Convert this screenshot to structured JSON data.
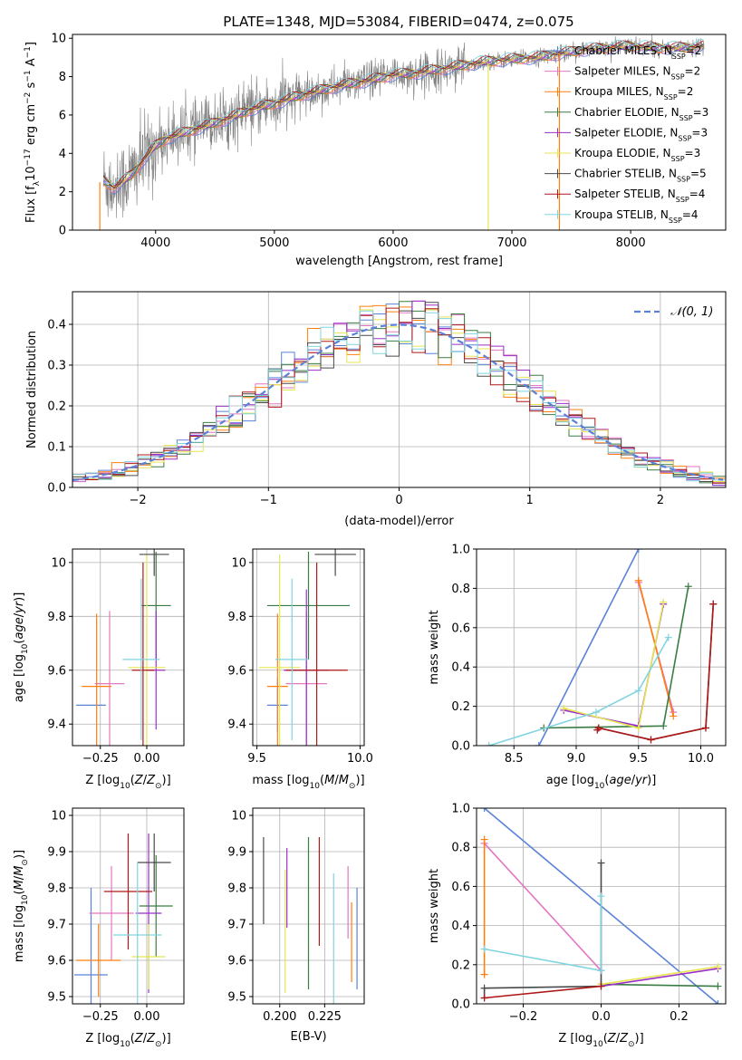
{
  "figure_title": "PLATE=1348, MJD=53084, FIBERID=0474, z=0.075",
  "colors": {
    "Chabrier MILES": "#5b82d9",
    "Salpeter MILES": "#e377c2",
    "Kroupa MILES": "#ff7f0e",
    "Chabrier ELODIE": "#3a7d44",
    "Salpeter ELODIE": "#9b30c8",
    "Kroupa ELODIE": "#e6e650",
    "Chabrier STELIB": "#4a4a4a",
    "Salpeter STELIB": "#b01818",
    "Kroupa STELIB": "#80d4e0",
    "gaussian": "#5b82d9",
    "data": "#808080",
    "grid": "#b0b0b0"
  },
  "chart_data": [
    {
      "id": "spectrum",
      "type": "line",
      "xlabel": "wavelength [Angstrom, rest frame]",
      "ylabel": "Flux [f_λ10^{-17} erg cm^{-2} s^{-1} A^{-1}]",
      "xlim": [
        3300,
        8800
      ],
      "ylim": [
        0,
        10.2
      ],
      "xticks": [
        4000,
        5000,
        6000,
        7000,
        8000
      ],
      "yticks": [
        0,
        2,
        4,
        6,
        8,
        10
      ],
      "grid": false,
      "legend_position": "right",
      "legend": [
        {
          "base": "Chabrier MILES, N",
          "sub": "SSP",
          "tail": "=2",
          "series": "Chabrier MILES"
        },
        {
          "base": "Salpeter MILES, N",
          "sub": "SSP",
          "tail": "=2",
          "series": "Salpeter MILES"
        },
        {
          "base": "Kroupa MILES, N",
          "sub": "SSP",
          "tail": "=2",
          "series": "Kroupa MILES"
        },
        {
          "base": "Chabrier ELODIE, N",
          "sub": "SSP",
          "tail": "=3",
          "series": "Chabrier ELODIE"
        },
        {
          "base": "Salpeter ELODIE, N",
          "sub": "SSP",
          "tail": "=3",
          "series": "Salpeter ELODIE"
        },
        {
          "base": "Kroupa ELODIE, N",
          "sub": "SSP",
          "tail": "=3",
          "series": "Kroupa ELODIE"
        },
        {
          "base": "Chabrier STELIB, N",
          "sub": "SSP",
          "tail": "=5",
          "series": "Chabrier STELIB"
        },
        {
          "base": "Salpeter STELIB, N",
          "sub": "SSP",
          "tail": "=4",
          "series": "Salpeter STELIB"
        },
        {
          "base": "Kroupa STELIB, N",
          "sub": "SSP",
          "tail": "=4",
          "series": "Kroupa STELIB"
        }
      ],
      "continuum": [
        [
          3560,
          2.6
        ],
        [
          3650,
          2.2
        ],
        [
          3800,
          2.9
        ],
        [
          3900,
          3.7
        ],
        [
          4000,
          4.4
        ],
        [
          4100,
          4.8
        ],
        [
          4200,
          5.0
        ],
        [
          4400,
          5.4
        ],
        [
          4600,
          5.8
        ],
        [
          4800,
          6.3
        ],
        [
          5000,
          6.6
        ],
        [
          5200,
          7.0
        ],
        [
          5400,
          7.3
        ],
        [
          5600,
          7.6
        ],
        [
          5800,
          7.8
        ],
        [
          6000,
          8.1
        ],
        [
          6200,
          8.2
        ],
        [
          6400,
          8.4
        ],
        [
          6600,
          8.6
        ],
        [
          6800,
          8.8
        ],
        [
          7000,
          8.9
        ],
        [
          7200,
          9.0
        ],
        [
          7400,
          9.2
        ],
        [
          7600,
          9.4
        ],
        [
          7800,
          9.5
        ],
        [
          8000,
          9.6
        ],
        [
          8200,
          9.5
        ],
        [
          8400,
          9.5
        ],
        [
          8620,
          9.6
        ]
      ]
    },
    {
      "id": "residuals",
      "type": "histogram",
      "xlabel": "(data-model)/error",
      "ylabel": "Normed distribution",
      "xlim": [
        -2.5,
        2.5
      ],
      "ylim": [
        0,
        0.48
      ],
      "xticks": [
        -2,
        -1,
        0,
        1,
        2
      ],
      "yticks": [
        0.0,
        0.1,
        0.2,
        0.3,
        0.4
      ],
      "grid": true,
      "legend": [
        "𝒩(0, 1)"
      ],
      "legend_position": "top-right",
      "gaussian": {
        "mu": 0,
        "sigma": 1
      }
    },
    {
      "id": "age_vs_Z",
      "type": "scatter",
      "xlabel": "Z [log10(Z/Z⊙)]",
      "ylabel": "age [log10(age/yr)]",
      "xlim": [
        -0.4,
        0.2
      ],
      "ylim": [
        9.32,
        10.05
      ],
      "xticks": [
        -0.25,
        0.0
      ],
      "yticks": [
        9.4,
        9.6,
        9.8,
        10.0
      ],
      "grid": true,
      "points": [
        {
          "series": "Chabrier MILES",
          "x": -0.3,
          "xerr": 0.08,
          "y": 9.47,
          "yerr": 0
        },
        {
          "series": "Salpeter MILES",
          "x": -0.2,
          "xerr": 0.08,
          "y": 9.55,
          "yerr": 0.27
        },
        {
          "series": "Kroupa MILES",
          "x": -0.27,
          "xerr": 0.08,
          "y": 9.54,
          "yerr": 0.27
        },
        {
          "series": "Chabrier ELODIE",
          "x": 0.05,
          "xerr": 0.08,
          "y": 9.84,
          "yerr": 0.2
        },
        {
          "series": "Salpeter ELODIE",
          "x": 0.05,
          "xerr": 0.05,
          "y": 9.6,
          "yerr": 0.22
        },
        {
          "series": "Kroupa ELODIE",
          "x": 0.0,
          "xerr": 0.1,
          "y": 9.61,
          "yerr": 0.42
        },
        {
          "series": "Chabrier STELIB",
          "x": 0.04,
          "xerr": 0.08,
          "y": 10.03,
          "yerr": 0.08
        },
        {
          "series": "Salpeter STELIB",
          "x": -0.02,
          "xerr": 0.06,
          "y": 9.6,
          "yerr": 0.4
        },
        {
          "series": "Kroupa STELIB",
          "x": -0.03,
          "xerr": 0.1,
          "y": 9.64,
          "yerr": 0.3
        }
      ]
    },
    {
      "id": "age_vs_mass",
      "type": "scatter",
      "xlabel": "mass [log10(M/M⊙)]",
      "ylabel": "",
      "xlim": [
        9.48,
        10.02
      ],
      "ylim": [
        9.32,
        10.05
      ],
      "xticks": [
        9.5,
        10.0
      ],
      "yticks": [
        9.4,
        9.6,
        9.8,
        10.0
      ],
      "grid": true,
      "points": [
        {
          "series": "Chabrier MILES",
          "x": 9.6,
          "xerr": 0.05,
          "y": 9.47,
          "yerr": 0.1
        },
        {
          "series": "Salpeter MILES",
          "x": 9.74,
          "xerr": 0.1,
          "y": 9.55,
          "yerr": 0.27
        },
        {
          "series": "Kroupa MILES",
          "x": 9.6,
          "xerr": 0.05,
          "y": 9.54,
          "yerr": 0.27
        },
        {
          "series": "Chabrier ELODIE",
          "x": 9.75,
          "xerr": 0.2,
          "y": 9.84,
          "yerr": 0.2
        },
        {
          "series": "Salpeter ELODIE",
          "x": 9.74,
          "xerr": 0.11,
          "y": 9.6,
          "yerr": 0.3
        },
        {
          "series": "Kroupa ELODIE",
          "x": 9.61,
          "xerr": 0.1,
          "y": 9.61,
          "yerr": 0.42
        },
        {
          "series": "Chabrier STELIB",
          "x": 9.88,
          "xerr": 0.1,
          "y": 10.03,
          "yerr": 0.08
        },
        {
          "series": "Salpeter STELIB",
          "x": 9.79,
          "xerr": 0.15,
          "y": 9.6,
          "yerr": 0.4
        },
        {
          "series": "Kroupa STELIB",
          "x": 9.67,
          "xerr": 0.08,
          "y": 9.64,
          "yerr": 0.3
        }
      ]
    },
    {
      "id": "mass_vs_Z",
      "type": "scatter",
      "xlabel": "Z [log10(Z/Z⊙)]",
      "ylabel": "mass [log10(M/M⊙)]",
      "xlim": [
        -0.4,
        0.2
      ],
      "ylim": [
        9.48,
        10.02
      ],
      "xticks": [
        -0.25,
        0.0
      ],
      "yticks": [
        9.5,
        9.6,
        9.7,
        9.8,
        9.9,
        10.0
      ],
      "grid": true,
      "points": [
        {
          "series": "Chabrier MILES",
          "x": -0.3,
          "xerr": 0.09,
          "y": 9.56,
          "yerr": 0.24
        },
        {
          "series": "Salpeter MILES",
          "x": -0.19,
          "xerr": 0.12,
          "y": 9.73,
          "yerr": 0.13
        },
        {
          "series": "Kroupa MILES",
          "x": -0.26,
          "xerr": 0.12,
          "y": 9.6,
          "yerr": 0.1
        },
        {
          "series": "Chabrier ELODIE",
          "x": 0.05,
          "xerr": 0.09,
          "y": 9.75,
          "yerr": 0.14
        },
        {
          "series": "Salpeter ELODIE",
          "x": 0.01,
          "xerr": 0.07,
          "y": 9.73,
          "yerr": 0.22
        },
        {
          "series": "Kroupa ELODIE",
          "x": 0.01,
          "xerr": 0.09,
          "y": 9.61,
          "yerr": 0.09
        },
        {
          "series": "Chabrier STELIB",
          "x": 0.04,
          "xerr": 0.09,
          "y": 9.87,
          "yerr": 0.08
        },
        {
          "series": "Salpeter STELIB",
          "x": -0.1,
          "xerr": 0.13,
          "y": 9.79,
          "yerr": 0.16
        },
        {
          "series": "Kroupa STELIB",
          "x": -0.05,
          "xerr": 0.13,
          "y": 9.67,
          "yerr": 0.2
        }
      ]
    },
    {
      "id": "mass_vs_EBV",
      "type": "scatter",
      "xlabel": "E(B-V)",
      "ylabel": "",
      "xlim": [
        0.185,
        0.247
      ],
      "ylim": [
        9.48,
        10.02
      ],
      "xticks": [
        0.2,
        0.225
      ],
      "yticks": [
        9.5,
        9.6,
        9.7,
        9.8,
        9.9,
        10.0
      ],
      "grid": true,
      "points": [
        {
          "series": "Chabrier MILES",
          "x": 0.243,
          "xerr": 0,
          "y": 9.66,
          "yerr": 0.14
        },
        {
          "series": "Salpeter MILES",
          "x": 0.238,
          "xerr": 0,
          "y": 9.76,
          "yerr": 0.1
        },
        {
          "series": "Kroupa MILES",
          "x": 0.24,
          "xerr": 0,
          "y": 9.65,
          "yerr": 0.11
        },
        {
          "series": "Chabrier ELODIE",
          "x": 0.216,
          "xerr": 0,
          "y": 9.73,
          "yerr": 0.21
        },
        {
          "series": "Salpeter ELODIE",
          "x": 0.204,
          "xerr": 0,
          "y": 9.8,
          "yerr": 0.11
        },
        {
          "series": "Kroupa ELODIE",
          "x": 0.203,
          "xerr": 0,
          "y": 9.68,
          "yerr": 0.17
        },
        {
          "series": "Chabrier STELIB",
          "x": 0.191,
          "xerr": 0,
          "y": 9.82,
          "yerr": 0.12
        },
        {
          "series": "Salpeter STELIB",
          "x": 0.222,
          "xerr": 0,
          "y": 9.79,
          "yerr": 0.15
        },
        {
          "series": "Kroupa STELIB",
          "x": 0.23,
          "xerr": 0,
          "y": 9.63,
          "yerr": 0.21
        }
      ]
    },
    {
      "id": "weight_vs_age",
      "type": "line",
      "xlabel": "age [log10(age/yr)]",
      "ylabel": "mass weight",
      "xlim": [
        8.2,
        10.2
      ],
      "ylim": [
        0,
        1.0
      ],
      "xticks": [
        8.5,
        9.0,
        9.5,
        10.0
      ],
      "yticks": [
        0.0,
        0.2,
        0.4,
        0.6,
        0.8,
        1.0
      ],
      "grid": true,
      "series": [
        {
          "series": "Chabrier MILES",
          "points": [
            [
              8.7,
              0.0
            ],
            [
              9.5,
              1.0
            ]
          ]
        },
        {
          "series": "Salpeter MILES",
          "points": [
            [
              9.5,
              0.83
            ],
            [
              9.78,
              0.17
            ]
          ]
        },
        {
          "series": "Kroupa MILES",
          "points": [
            [
              9.5,
              0.84
            ],
            [
              9.78,
              0.15
            ]
          ]
        },
        {
          "series": "Chabrier ELODIE",
          "points": [
            [
              8.74,
              0.09
            ],
            [
              9.7,
              0.1
            ],
            [
              9.9,
              0.81
            ]
          ]
        },
        {
          "series": "Salpeter ELODIE",
          "points": [
            [
              8.9,
              0.18
            ],
            [
              9.5,
              0.1
            ],
            [
              9.7,
              0.72
            ]
          ]
        },
        {
          "series": "Kroupa ELODIE",
          "points": [
            [
              8.9,
              0.19
            ],
            [
              9.5,
              0.09
            ],
            [
              9.7,
              0.73
            ]
          ]
        },
        {
          "series": "Chabrier STELIB",
          "points": [
            [
              9.17,
              0.08
            ],
            [
              9.18,
              0.09
            ],
            [
              9.6,
              0.03
            ],
            [
              10.04,
              0.09
            ],
            [
              10.1,
              0.72
            ]
          ]
        },
        {
          "series": "Salpeter STELIB",
          "points": [
            [
              9.17,
              0.08
            ],
            [
              9.18,
              0.09
            ],
            [
              9.6,
              0.03
            ],
            [
              10.04,
              0.09
            ],
            [
              10.1,
              0.72
            ]
          ]
        },
        {
          "series": "Kroupa STELIB",
          "points": [
            [
              8.3,
              0.0
            ],
            [
              9.16,
              0.17
            ],
            [
              9.5,
              0.28
            ],
            [
              9.74,
              0.55
            ]
          ]
        }
      ]
    },
    {
      "id": "weight_vs_Z",
      "type": "line",
      "xlabel": "Z [log10(Z/Z⊙)]",
      "ylabel": "mass weight",
      "xlim": [
        -0.32,
        0.32
      ],
      "ylim": [
        0,
        1.0
      ],
      "xticks": [
        -0.2,
        0.0,
        0.2
      ],
      "yticks": [
        0.0,
        0.2,
        0.4,
        0.6,
        0.8,
        1.0
      ],
      "grid": true,
      "series": [
        {
          "series": "Chabrier MILES",
          "points": [
            [
              -0.3,
              1.0
            ],
            [
              0.3,
              0.0
            ]
          ]
        },
        {
          "series": "Salpeter MILES",
          "points": [
            [
              -0.3,
              0.82
            ],
            [
              0.0,
              0.17
            ]
          ]
        },
        {
          "series": "Kroupa MILES",
          "points": [
            [
              -0.3,
              0.84
            ],
            [
              -0.3,
              0.15
            ]
          ]
        },
        {
          "series": "Chabrier ELODIE",
          "points": [
            [
              0.0,
              0.1
            ],
            [
              0.3,
              0.09
            ]
          ]
        },
        {
          "series": "Salpeter ELODIE",
          "points": [
            [
              0.0,
              0.09
            ],
            [
              0.3,
              0.18
            ]
          ]
        },
        {
          "series": "Kroupa ELODIE",
          "points": [
            [
              0.0,
              0.1
            ],
            [
              0.3,
              0.19
            ]
          ]
        },
        {
          "series": "Chabrier STELIB",
          "points": [
            [
              -0.3,
              0.03
            ],
            [
              -0.3,
              0.08
            ],
            [
              0.0,
              0.09
            ],
            [
              0.0,
              0.72
            ]
          ]
        },
        {
          "series": "Salpeter STELIB",
          "points": [
            [
              -0.3,
              0.03
            ],
            [
              0.0,
              0.09
            ]
          ]
        },
        {
          "series": "Kroupa STELIB",
          "points": [
            [
              -0.3,
              0.28
            ],
            [
              0.0,
              0.17
            ],
            [
              0.0,
              0.55
            ]
          ]
        }
      ]
    }
  ]
}
